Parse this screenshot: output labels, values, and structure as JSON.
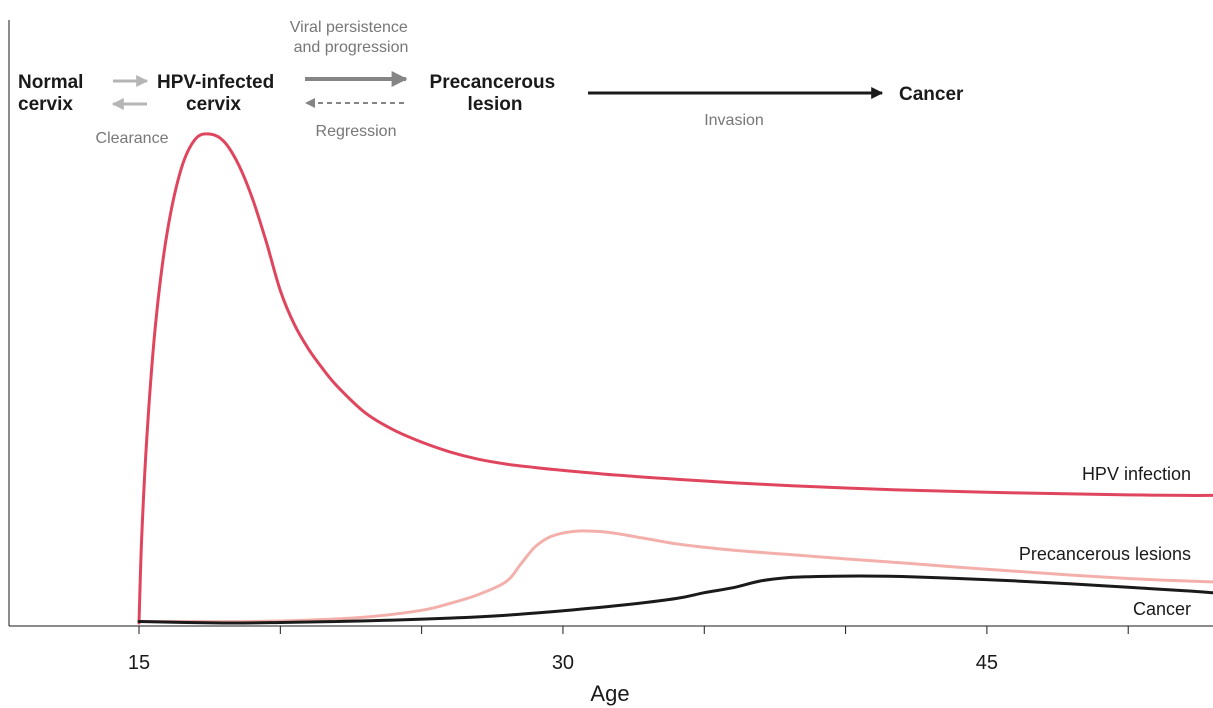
{
  "chart_data": {
    "type": "line",
    "title": "",
    "xlabel": "Age",
    "ylabel": "",
    "xlim": [
      10.4,
      53
    ],
    "ylim": [
      0,
      100
    ],
    "x_ticks": [
      15,
      30,
      45
    ],
    "grid": false,
    "series": [
      {
        "name": "HPV infection",
        "color": "#e0455e",
        "x": [
          15,
          15.1,
          15.3,
          15.6,
          16,
          16.5,
          17,
          17.5,
          18,
          18.5,
          19,
          19.5,
          20,
          20.5,
          21,
          21.5,
          22,
          23,
          24,
          25,
          26,
          27,
          28,
          29,
          30,
          32,
          34,
          36,
          38,
          40,
          42,
          44,
          46,
          48,
          50,
          52,
          53
        ],
        "y": [
          0,
          18,
          40,
          62,
          80,
          93,
          99,
          100,
          98.5,
          94,
          87,
          78,
          68,
          61,
          56,
          52,
          48.5,
          43,
          39.5,
          37,
          35,
          33.5,
          32.5,
          31.8,
          31.2,
          30.2,
          29.4,
          28.7,
          28.1,
          27.6,
          27.2,
          26.9,
          26.6,
          26.4,
          26.2,
          26.1,
          26.1
        ]
      },
      {
        "name": "Precancerous lesions",
        "color": "#f3b0ab",
        "x": [
          15,
          17,
          19,
          21,
          23,
          25,
          26,
          27,
          28,
          28.5,
          29,
          29.5,
          30,
          30.5,
          31,
          31.5,
          32,
          33,
          34,
          35,
          36,
          38,
          40,
          42,
          44,
          46,
          48,
          50,
          52,
          53
        ],
        "y": [
          0.3,
          0.3,
          0.3,
          0.6,
          1.2,
          2.6,
          4,
          5.8,
          8.5,
          12,
          15.5,
          17.5,
          18.4,
          18.8,
          18.8,
          18.6,
          18.2,
          17.2,
          16.2,
          15.5,
          14.9,
          14,
          13.1,
          12.3,
          11.4,
          10.6,
          9.8,
          9.1,
          8.6,
          8.4
        ]
      },
      {
        "name": "Cancer",
        "color": "#1a1a1a",
        "x": [
          15,
          18,
          20,
          22,
          24,
          26,
          28,
          30,
          32,
          34,
          35,
          36,
          37,
          38,
          39,
          40,
          41,
          42,
          44,
          46,
          48,
          50,
          52,
          53
        ],
        "y": [
          0.3,
          0,
          0.1,
          0.3,
          0.6,
          1,
          1.6,
          2.5,
          3.6,
          5,
          6.2,
          7.2,
          8.6,
          9.3,
          9.5,
          9.6,
          9.6,
          9.5,
          9.1,
          8.6,
          8,
          7.3,
          6.6,
          6.2
        ]
      }
    ]
  },
  "diagram": {
    "normal_cervix": [
      "Normal",
      "cervix"
    ],
    "hpv_infected_cervix": [
      "HPV-infected",
      "cervix"
    ],
    "precancerous_lesion": [
      "Precancerous",
      "lesion"
    ],
    "cancer": "Cancer",
    "clearance": "Clearance",
    "viral_persistence": [
      "Viral persistence",
      "and progression"
    ],
    "regression": "Regression",
    "invasion": "Invasion",
    "arrow_colors": {
      "light": "#b5b5b5",
      "medium": "#858585",
      "dark": "#1a1a1a"
    }
  }
}
